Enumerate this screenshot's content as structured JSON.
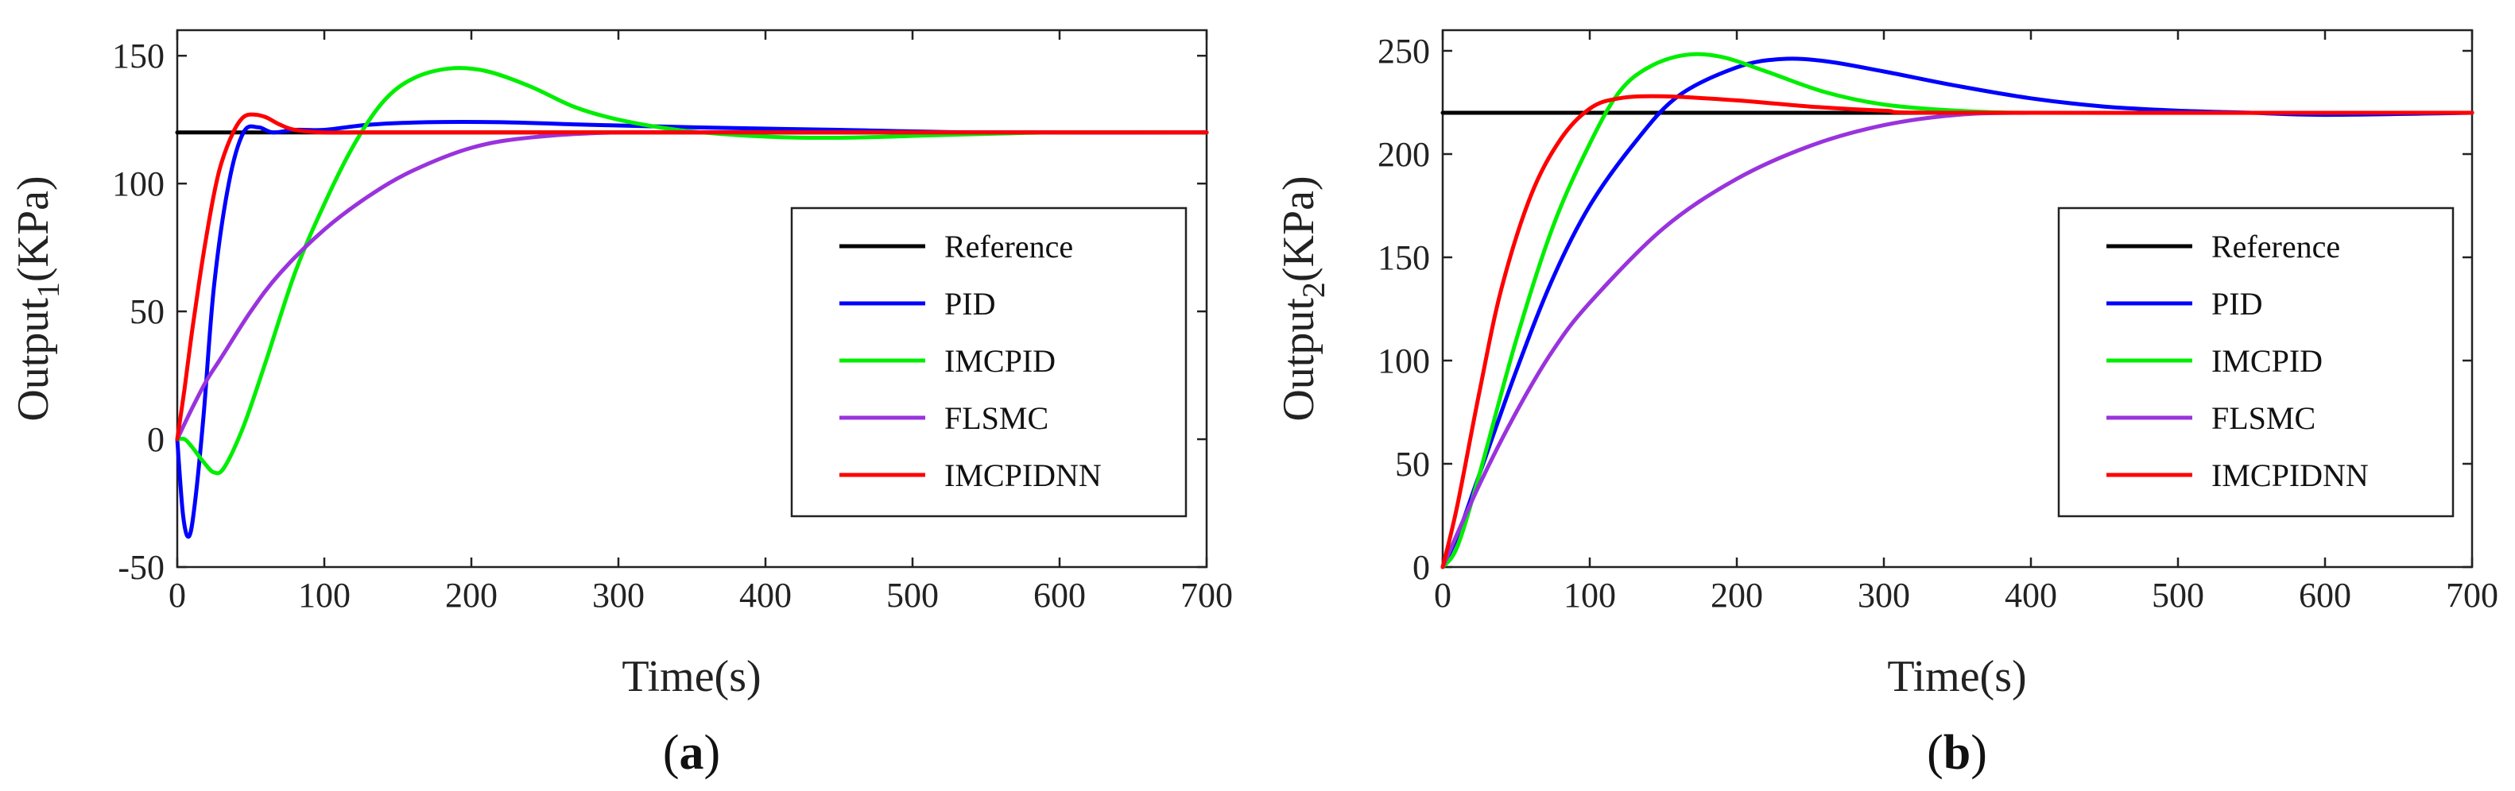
{
  "chart_data": [
    {
      "type": "line",
      "panel_label": "a",
      "xlabel": "Time(s)",
      "ylabel_main": "Output",
      "ylabel_sub": "1",
      "ylabel_unit": "(KPa)",
      "xlim": [
        0,
        700
      ],
      "ylim": [
        -50,
        160
      ],
      "xticks": [
        0,
        100,
        200,
        300,
        400,
        500,
        600,
        700
      ],
      "yticks": [
        -50,
        0,
        50,
        100,
        150
      ],
      "legend_position": "center-right",
      "series": [
        {
          "name": "Reference",
          "color": "#000000",
          "x": [
            0,
            700
          ],
          "y": [
            120,
            120
          ]
        },
        {
          "name": "PID",
          "color": "#0000ff",
          "x": [
            0,
            4,
            8,
            12,
            18,
            25,
            35,
            45,
            55,
            65,
            80,
            100,
            130,
            170,
            220,
            280,
            350,
            450,
            550,
            700
          ],
          "y": [
            0,
            -30,
            -38,
            -25,
            10,
            60,
            100,
            120,
            122,
            120,
            121,
            121,
            123,
            124,
            124,
            123,
            122,
            121,
            120,
            120
          ]
        },
        {
          "name": "IMCPID",
          "color": "#00ee00",
          "x": [
            0,
            5,
            10,
            18,
            25,
            32,
            45,
            60,
            80,
            100,
            120,
            140,
            160,
            185,
            210,
            240,
            270,
            300,
            340,
            380,
            420,
            460,
            520,
            600,
            700
          ],
          "y": [
            0,
            0,
            -3,
            -9,
            -13,
            -11,
            5,
            30,
            65,
            92,
            115,
            132,
            141,
            145,
            144,
            138,
            130,
            125,
            121,
            119,
            118,
            118,
            119,
            120,
            120
          ]
        },
        {
          "name": "FLSMC",
          "color": "#9933dd",
          "x": [
            0,
            10,
            20,
            30,
            50,
            70,
            100,
            130,
            160,
            200,
            240,
            300,
            400,
            500,
            700
          ],
          "y": [
            0,
            12,
            23,
            32,
            50,
            65,
            82,
            95,
            105,
            114,
            118,
            120,
            120,
            120,
            120
          ]
        },
        {
          "name": "IMCPIDNN",
          "color": "#ff0000",
          "x": [
            0,
            5,
            10,
            15,
            20,
            25,
            30,
            38,
            45,
            52,
            60,
            70,
            80,
            100,
            130,
            200,
            700
          ],
          "y": [
            0,
            20,
            42,
            62,
            80,
            96,
            108,
            120,
            126,
            127,
            126,
            123,
            121,
            120,
            120,
            120,
            120
          ]
        }
      ]
    },
    {
      "type": "line",
      "panel_label": "b",
      "xlabel": "Time(s)",
      "ylabel_main": "Output",
      "ylabel_sub": "2",
      "ylabel_unit": "(KPa)",
      "xlim": [
        0,
        700
      ],
      "ylim": [
        0,
        260
      ],
      "xticks": [
        0,
        100,
        200,
        300,
        400,
        500,
        600,
        700
      ],
      "yticks": [
        0,
        50,
        100,
        150,
        200,
        250
      ],
      "legend_position": "center-right",
      "series": [
        {
          "name": "Reference",
          "color": "#000000",
          "x": [
            0,
            700
          ],
          "y": [
            220,
            220
          ]
        },
        {
          "name": "PID",
          "color": "#0000ff",
          "x": [
            0,
            10,
            25,
            50,
            75,
            100,
            130,
            160,
            200,
            230,
            260,
            300,
            350,
            400,
            450,
            500,
            550,
            600,
            700
          ],
          "y": [
            0,
            15,
            45,
            95,
            140,
            175,
            205,
            228,
            242,
            246,
            245,
            240,
            233,
            227,
            223,
            221,
            220,
            219,
            220
          ]
        },
        {
          "name": "IMCPID",
          "color": "#00ee00",
          "x": [
            0,
            10,
            25,
            50,
            75,
            100,
            120,
            140,
            165,
            190,
            220,
            260,
            300,
            350,
            400,
            500,
            700
          ],
          "y": [
            0,
            10,
            45,
            110,
            165,
            205,
            230,
            242,
            248,
            247,
            240,
            230,
            224,
            221,
            220,
            220,
            220
          ]
        },
        {
          "name": "FLSMC",
          "color": "#9933dd",
          "x": [
            0,
            25,
            50,
            75,
            100,
            150,
            200,
            250,
            300,
            350,
            400,
            500,
            700
          ],
          "y": [
            0,
            40,
            75,
            105,
            128,
            164,
            188,
            204,
            214,
            219,
            220,
            220,
            220
          ]
        },
        {
          "name": "IMCPIDNN",
          "color": "#ff0000",
          "x": [
            0,
            10,
            25,
            40,
            60,
            80,
            100,
            120,
            150,
            200,
            250,
            300,
            350,
            700
          ],
          "y": [
            0,
            30,
            85,
            135,
            180,
            207,
            222,
            227,
            228,
            226,
            223,
            221,
            220,
            220
          ]
        }
      ]
    }
  ]
}
